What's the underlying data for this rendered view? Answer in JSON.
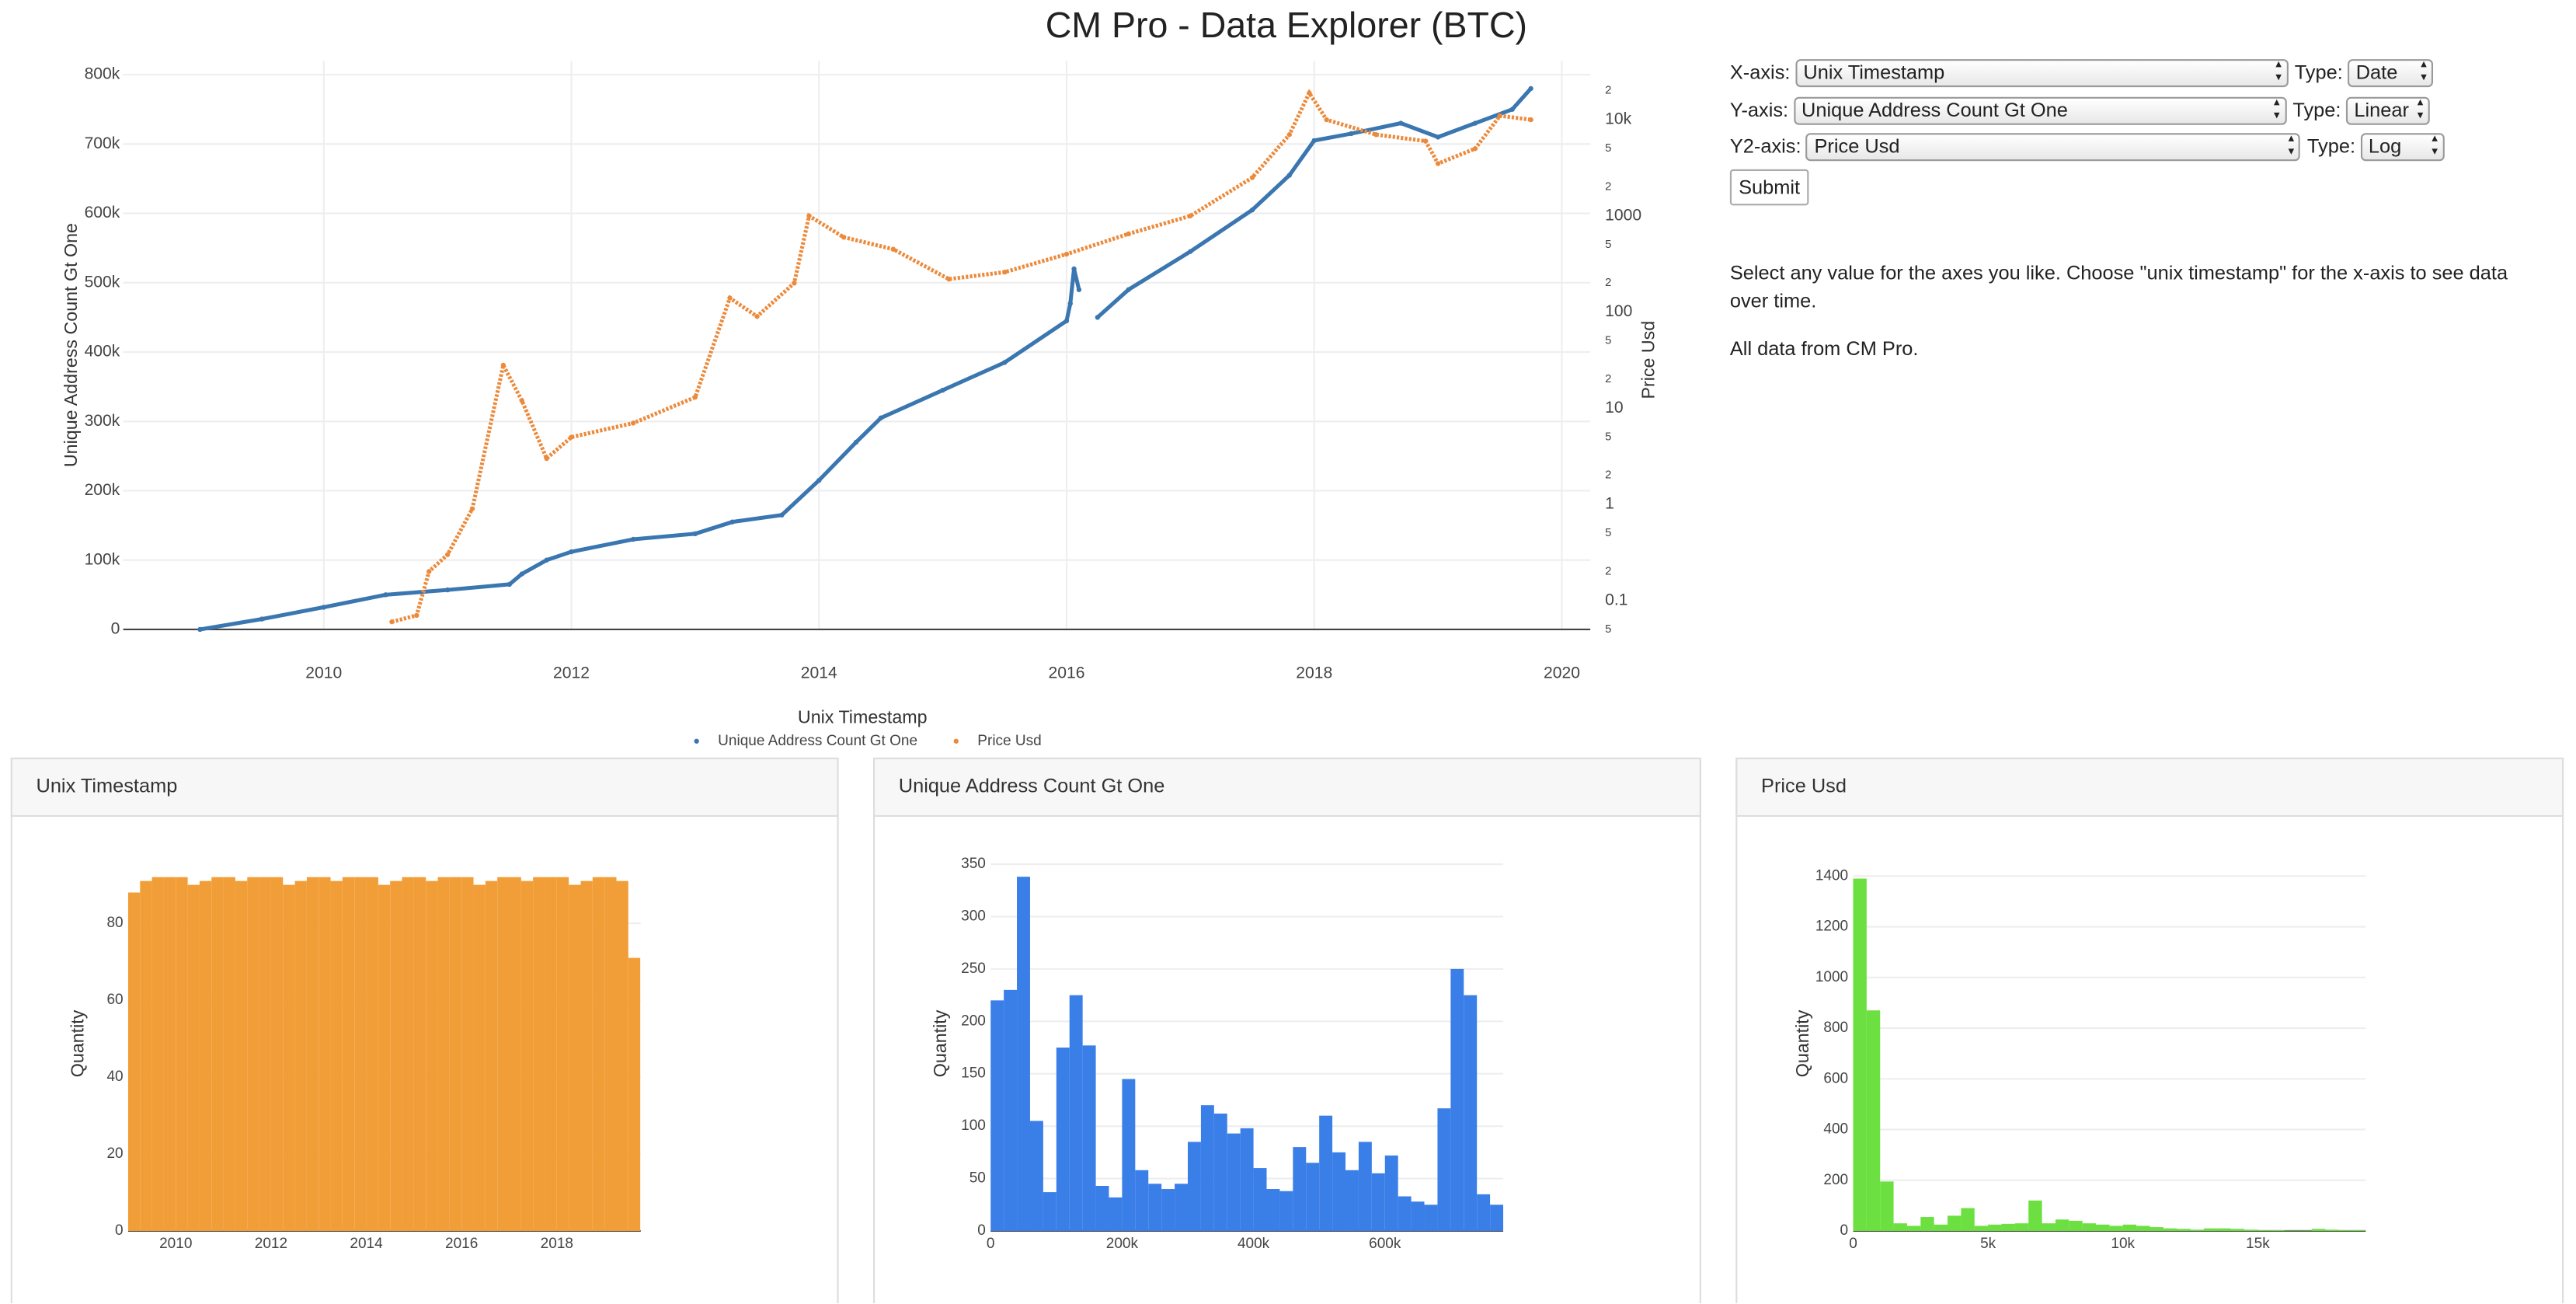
{
  "title": "CM Pro - Data Explorer (BTC)",
  "controls": [
    {
      "label": "X-axis:",
      "value": "Unix Timestamp",
      "type_label": "Type:",
      "type": "Date"
    },
    {
      "label": "Y-axis:",
      "value": "Unique Address Count Gt One",
      "type_label": "Type:",
      "type": "Linear"
    },
    {
      "label": "Y2-axis:",
      "value": "Price Usd",
      "type_label": "Type:",
      "type": "Log"
    }
  ],
  "submit": "Submit",
  "description": [
    "Select any value for the axes you like. Choose \"unix timestamp\" for the x-axis to see data over time.",
    "All data from CM Pro."
  ],
  "chart_data": [
    {
      "type": "scatter",
      "x_label": "Unix Timestamp",
      "y_label": "Unique Address Count Gt One",
      "y2_label": "Price Usd",
      "xlim": [
        2008.38,
        2020.23
      ],
      "xticks": [
        2010,
        2012,
        2014,
        2016,
        2018,
        2020
      ],
      "ylim": [
        0,
        820000
      ],
      "yticks": [
        0,
        {
          "value": 100000,
          "label": "100k"
        },
        {
          "value": 200000,
          "label": "200k"
        },
        {
          "value": 300000,
          "label": "300k"
        },
        {
          "value": 400000,
          "label": "400k"
        },
        {
          "value": 500000,
          "label": "500k"
        },
        {
          "value": 600000,
          "label": "600k"
        },
        {
          "value": 700000,
          "label": "700k"
        },
        {
          "value": 800000,
          "label": "800k"
        }
      ],
      "y2_log": true,
      "y2lim": [
        0.05,
        41000
      ],
      "y2ticks": [
        {
          "value": 0.05,
          "label": "5"
        },
        0.1,
        {
          "value": 0.2,
          "label": "2"
        },
        {
          "value": 0.5,
          "label": "5"
        },
        1,
        {
          "value": 2,
          "label": "2"
        },
        {
          "value": 5,
          "label": "5"
        },
        10,
        {
          "value": 20,
          "label": "2"
        },
        {
          "value": 50,
          "label": "5"
        },
        100,
        {
          "value": 200,
          "label": "2"
        },
        {
          "value": 500,
          "label": "5"
        },
        1000,
        {
          "value": 2000,
          "label": "2"
        },
        {
          "value": 5000,
          "label": "5"
        },
        {
          "value": 10000,
          "label": "10k"
        },
        {
          "value": 20000,
          "label": "2"
        }
      ],
      "grid": true,
      "legend": "bottom",
      "series": [
        {
          "name": "Unique Address Count Gt One",
          "color": "#3a76b0",
          "x": [
            2009.0,
            2009.5,
            2010.0,
            2010.5,
            2011.0,
            2011.5,
            2011.6,
            2011.8,
            2012.0,
            2012.5,
            2013.0,
            2013.3,
            2013.7,
            2014.0,
            2014.3,
            2014.5,
            2015.0,
            2015.5,
            2016.0,
            2016.03,
            2016.06,
            2016.1,
            2016.2,
            2016.25,
            2016.5,
            2017.0,
            2017.5,
            2017.8,
            2018.0,
            2018.3,
            2018.7,
            2019.0,
            2019.3,
            2019.6,
            2019.75
          ],
          "values": [
            0,
            15000,
            32000,
            50000,
            57000,
            65000,
            80000,
            100000,
            112000,
            130000,
            138000,
            155000,
            165000,
            215000,
            270000,
            305000,
            345000,
            385000,
            445000,
            470000,
            520000,
            490000,
            null,
            450000,
            490000,
            545000,
            605000,
            655000,
            705000,
            715000,
            730000,
            710000,
            730000,
            750000,
            780000
          ]
        },
        {
          "name": "Price Usd",
          "color": "#ec8a3c",
          "axis": "y2",
          "x": [
            2010.55,
            2010.75,
            2010.85,
            2011.0,
            2011.2,
            2011.45,
            2011.6,
            2011.8,
            2012.0,
            2012.5,
            2013.0,
            2013.28,
            2013.5,
            2013.8,
            2013.92,
            2014.2,
            2014.6,
            2015.05,
            2015.5,
            2016.0,
            2016.5,
            2017.0,
            2017.5,
            2017.8,
            2017.96,
            2018.1,
            2018.5,
            2018.9,
            2019.0,
            2019.3,
            2019.5,
            2019.75
          ],
          "values": [
            0.06,
            0.07,
            0.2,
            0.3,
            0.9,
            28,
            12,
            3,
            5,
            7,
            13,
            140,
            90,
            200,
            1000,
            600,
            450,
            220,
            260,
            400,
            650,
            1000,
            2500,
            7000,
            19000,
            10000,
            7000,
            6000,
            3500,
            5000,
            11000,
            10000
          ]
        }
      ]
    },
    {
      "type": "histogram",
      "title": "Unix Timestamp",
      "y_label": "Quantity",
      "color": "#f29e38",
      "bins": [
        2009,
        2009.25,
        2009.5,
        2009.75,
        2010,
        2010.25,
        2010.5,
        2010.75,
        2011,
        2011.25,
        2011.5,
        2011.75,
        2012,
        2012.25,
        2012.5,
        2012.75,
        2013,
        2013.25,
        2013.5,
        2013.75,
        2014,
        2014.25,
        2014.5,
        2014.75,
        2015,
        2015.25,
        2015.5,
        2015.75,
        2016,
        2016.25,
        2016.5,
        2016.75,
        2017,
        2017.25,
        2017.5,
        2017.75,
        2018,
        2018.25,
        2018.5,
        2018.75,
        2019,
        2019.25,
        2019.5,
        2019.75
      ],
      "counts": [
        88,
        91,
        92,
        92,
        92,
        90,
        91,
        92,
        92,
        91,
        92,
        92,
        92,
        90,
        91,
        92,
        92,
        91,
        92,
        92,
        92,
        90,
        91,
        92,
        92,
        91,
        92,
        92,
        92,
        90,
        91,
        92,
        92,
        91,
        92,
        92,
        92,
        90,
        91,
        92,
        92,
        91,
        71
      ],
      "xlim": [
        2009,
        2019.76
      ],
      "xticks": [
        2010,
        2012,
        2014,
        2016,
        2018
      ],
      "ylim": [
        0,
        100
      ],
      "yticks": [
        0,
        20,
        40,
        60,
        80
      ]
    },
    {
      "type": "histogram",
      "title": "Unique Address Count Gt One",
      "y_label": "Quantity",
      "color": "#3a7ee8",
      "bins": [
        0,
        20000,
        40000,
        60000,
        80000,
        100000,
        120000,
        140000,
        160000,
        180000,
        200000,
        220000,
        240000,
        260000,
        280000,
        300000,
        320000,
        340000,
        360000,
        380000,
        400000,
        420000,
        440000,
        460000,
        480000,
        500000,
        520000,
        540000,
        560000,
        580000,
        600000,
        620000,
        640000,
        660000,
        680000,
        700000,
        720000,
        740000,
        760000,
        780000
      ],
      "counts": [
        220,
        230,
        338,
        105,
        37,
        175,
        225,
        177,
        43,
        32,
        145,
        58,
        45,
        40,
        45,
        85,
        120,
        112,
        93,
        98,
        60,
        40,
        38,
        80,
        65,
        110,
        75,
        58,
        85,
        55,
        72,
        33,
        28,
        25,
        117,
        250,
        225,
        35,
        25
      ],
      "xlim": [
        0,
        780000
      ],
      "xticks": [
        0,
        {
          "value": 200000,
          "label": "200k"
        },
        {
          "value": 400000,
          "label": "400k"
        },
        {
          "value": 600000,
          "label": "600k"
        }
      ],
      "ylim": [
        0,
        367
      ],
      "yticks": [
        0,
        50,
        100,
        150,
        200,
        250,
        300,
        350
      ]
    },
    {
      "type": "histogram",
      "title": "Price Usd",
      "y_label": "Quantity",
      "color": "#6be040",
      "bins": [
        0,
        500,
        1000,
        1500,
        2000,
        2500,
        3000,
        3500,
        4000,
        4500,
        5000,
        5500,
        6000,
        6500,
        7000,
        7500,
        8000,
        8500,
        9000,
        9500,
        10000,
        10500,
        11000,
        11500,
        12000,
        12500,
        13000,
        13500,
        14000,
        14500,
        15000,
        15500,
        16000,
        16500,
        17000,
        17500,
        18000,
        18500,
        19000
      ],
      "counts": [
        1390,
        870,
        195,
        30,
        20,
        55,
        25,
        60,
        90,
        20,
        25,
        28,
        30,
        120,
        30,
        45,
        40,
        30,
        25,
        20,
        25,
        20,
        15,
        10,
        8,
        5,
        10,
        10,
        8,
        5,
        3,
        3,
        2,
        2,
        8,
        5,
        3,
        3
      ],
      "xlim": [
        0,
        19000
      ],
      "xticks": [
        0,
        {
          "value": 5000,
          "label": "5k"
        },
        {
          "value": 10000,
          "label": "10k"
        },
        {
          "value": 15000,
          "label": "15k"
        }
      ],
      "ylim": [
        0,
        1517
      ],
      "yticks": [
        0,
        200,
        400,
        600,
        800,
        1000,
        1200,
        1400
      ]
    }
  ]
}
